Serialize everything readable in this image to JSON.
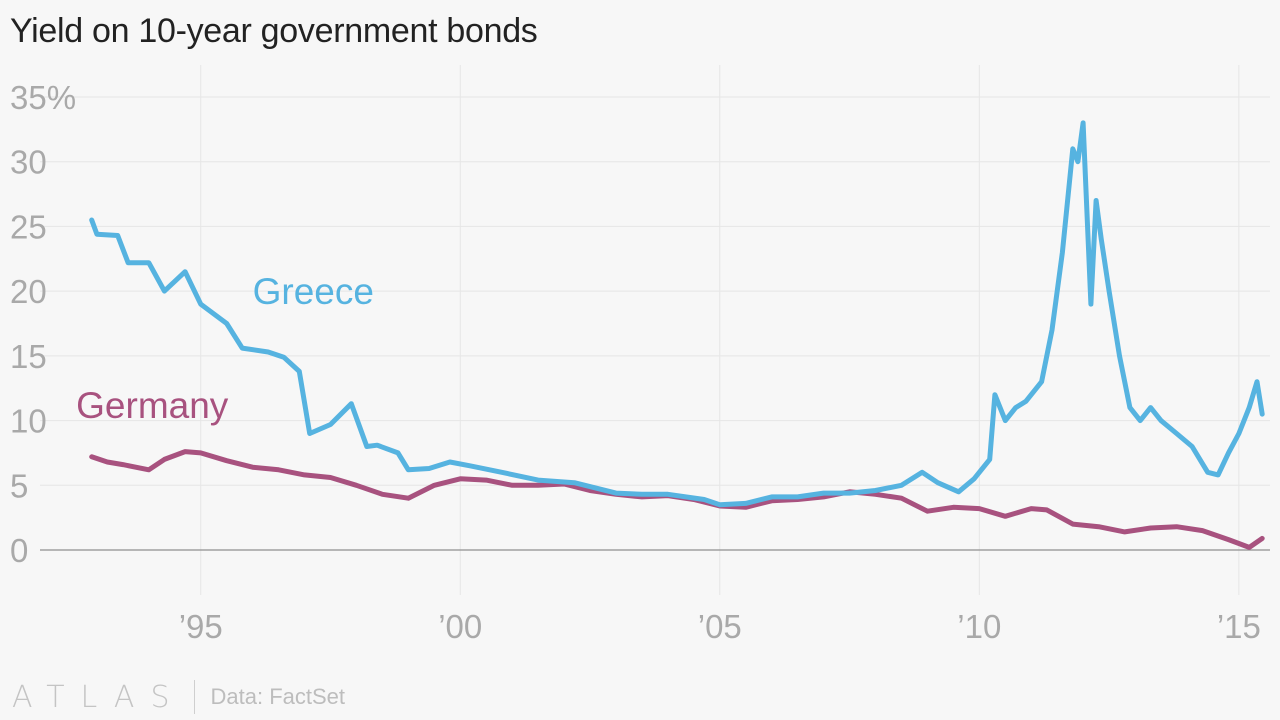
{
  "header": {
    "title": "Yield on 10-year government bonds"
  },
  "footer": {
    "brand": "ATLAS",
    "source": "Data: FactSet"
  },
  "colors": {
    "greece": "#56b3e0",
    "germany": "#a8527f",
    "grid": "#e6e6e6",
    "axis": "#a0a0a0",
    "tick_text": "#a9a9a9"
  },
  "chart_data": {
    "type": "line",
    "title": "Yield on 10-year government bonds",
    "xlabel": "",
    "ylabel": "",
    "xlim": [
      1992.0,
      2015.6
    ],
    "ylim": [
      0,
      35
    ],
    "grid": true,
    "y_ticks": [
      0,
      5,
      10,
      15,
      20,
      25,
      30,
      35
    ],
    "y_tick_labels": [
      "0",
      "5",
      "10",
      "15",
      "20",
      "25",
      "30",
      "35%"
    ],
    "x_ticks": [
      1995,
      2000,
      2005,
      2010,
      2015
    ],
    "x_tick_labels": [
      "’95",
      "’00",
      "’05",
      "’10",
      "’15"
    ],
    "series": [
      {
        "name": "Greece",
        "label_position": [
          1996.0,
          19.0
        ],
        "x": [
          1992.9,
          1993.0,
          1993.4,
          1993.6,
          1994.0,
          1994.3,
          1994.7,
          1995.0,
          1995.5,
          1995.8,
          1996.3,
          1996.6,
          1996.9,
          1997.1,
          1997.5,
          1997.9,
          1998.2,
          1998.4,
          1998.8,
          1999.0,
          1999.4,
          1999.8,
          2000.2,
          2000.8,
          2001.5,
          2002.2,
          2003.0,
          2003.5,
          2004.0,
          2004.7,
          2005.0,
          2005.5,
          2006.0,
          2006.5,
          2007.0,
          2007.5,
          2008.0,
          2008.5,
          2008.9,
          2009.2,
          2009.6,
          2009.9,
          2010.2,
          2010.3,
          2010.5,
          2010.7,
          2010.9,
          2011.2,
          2011.4,
          2011.6,
          2011.8,
          2011.9,
          2012.0,
          2012.15,
          2012.25,
          2012.35,
          2012.5,
          2012.7,
          2012.9,
          2013.1,
          2013.3,
          2013.5,
          2013.8,
          2014.1,
          2014.4,
          2014.6,
          2014.8,
          2015.0,
          2015.2,
          2015.35,
          2015.45
        ],
        "y": [
          25.5,
          24.4,
          24.3,
          22.2,
          22.2,
          20.0,
          21.5,
          19.0,
          17.5,
          15.6,
          15.3,
          14.9,
          13.8,
          9.0,
          9.7,
          11.3,
          8.0,
          8.1,
          7.5,
          6.2,
          6.3,
          6.8,
          6.5,
          6.0,
          5.4,
          5.2,
          4.4,
          4.3,
          4.3,
          3.9,
          3.5,
          3.6,
          4.1,
          4.1,
          4.4,
          4.4,
          4.6,
          5.0,
          6.0,
          5.2,
          4.5,
          5.5,
          7.0,
          12.0,
          10.0,
          11.0,
          11.5,
          13.0,
          17.0,
          23.0,
          31.0,
          30.0,
          33.0,
          19.0,
          27.0,
          24.0,
          20.0,
          15.0,
          11.0,
          10.0,
          11.0,
          10.0,
          9.0,
          8.0,
          6.0,
          5.8,
          7.5,
          9.0,
          11.0,
          13.0,
          10.5
        ]
      },
      {
        "name": "Germany",
        "label_position": [
          1992.6,
          10.2
        ],
        "x": [
          1992.9,
          1993.2,
          1993.5,
          1994.0,
          1994.3,
          1994.7,
          1995.0,
          1995.5,
          1996.0,
          1996.5,
          1997.0,
          1997.5,
          1998.0,
          1998.5,
          1999.0,
          1999.5,
          2000.0,
          2000.5,
          2001.0,
          2001.5,
          2002.0,
          2002.5,
          2003.0,
          2003.5,
          2004.0,
          2004.5,
          2005.0,
          2005.5,
          2006.0,
          2006.5,
          2007.0,
          2007.5,
          2008.0,
          2008.5,
          2009.0,
          2009.5,
          2010.0,
          2010.5,
          2011.0,
          2011.3,
          2011.8,
          2012.3,
          2012.8,
          2013.3,
          2013.8,
          2014.3,
          2014.8,
          2015.0,
          2015.2,
          2015.45
        ],
        "y": [
          7.2,
          6.8,
          6.6,
          6.2,
          7.0,
          7.6,
          7.5,
          6.9,
          6.4,
          6.2,
          5.8,
          5.6,
          5.0,
          4.3,
          4.0,
          5.0,
          5.5,
          5.4,
          5.0,
          5.0,
          5.1,
          4.6,
          4.3,
          4.1,
          4.2,
          3.9,
          3.4,
          3.3,
          3.8,
          3.9,
          4.1,
          4.5,
          4.3,
          4.0,
          3.0,
          3.3,
          3.2,
          2.6,
          3.2,
          3.1,
          2.0,
          1.8,
          1.4,
          1.7,
          1.8,
          1.5,
          0.8,
          0.5,
          0.2,
          0.9
        ]
      }
    ]
  }
}
